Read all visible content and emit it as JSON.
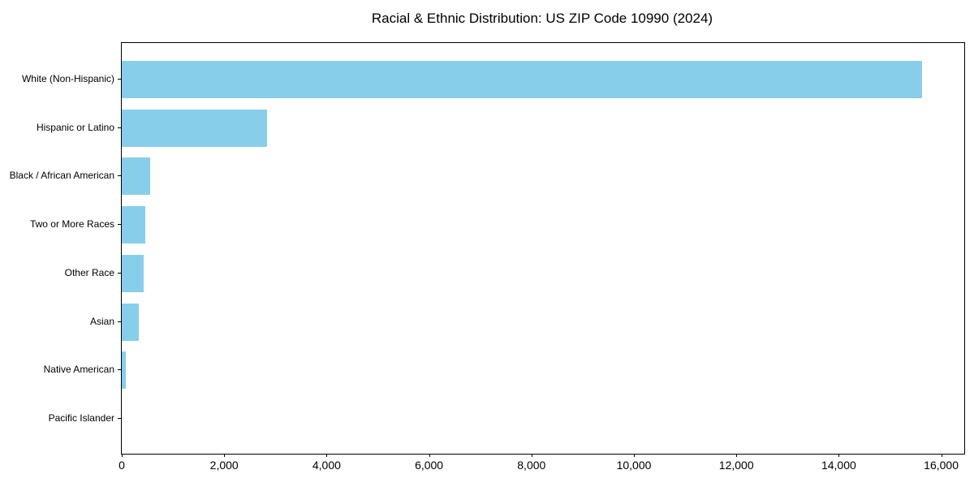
{
  "title": "Racial & Ethnic Distribution: US ZIP Code 10990 (2024)",
  "chart_data": {
    "type": "bar",
    "orientation": "horizontal",
    "title": "Racial & Ethnic Distribution: US ZIP Code 10990 (2024)",
    "categories": [
      "White (Non-Hispanic)",
      "Hispanic or Latino",
      "Black / African American",
      "Two or More Races",
      "Other Race",
      "Asian",
      "Native American",
      "Pacific Islander"
    ],
    "values": [
      15630,
      2840,
      560,
      460,
      420,
      340,
      80,
      0
    ],
    "xlabel": "",
    "ylabel": "",
    "xlim": [
      0,
      16450
    ],
    "x_tick_values": [
      0,
      2000,
      4000,
      6000,
      8000,
      10000,
      12000,
      14000,
      16000
    ],
    "x_tick_labels": [
      "0",
      "2,000",
      "4,000",
      "6,000",
      "8,000",
      "10,000",
      "12,000",
      "14,000",
      "16,000"
    ],
    "bar_color": "#87CEEB",
    "axis_color": "#000000",
    "background_color": "#ffffff",
    "grid": false,
    "legend": null
  }
}
